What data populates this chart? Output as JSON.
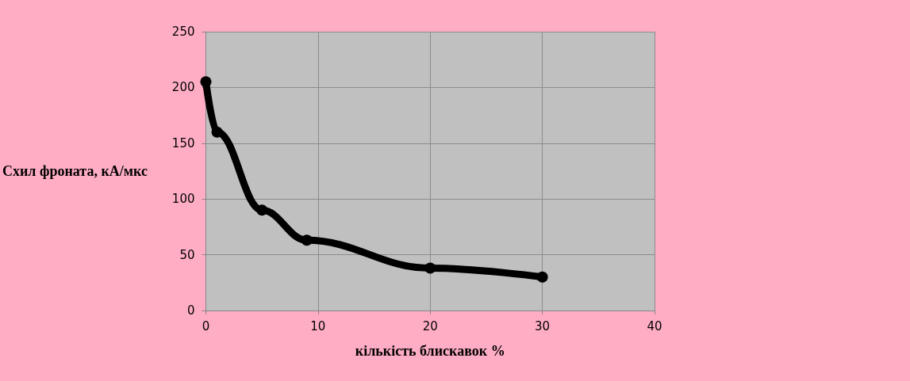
{
  "chart_data": {
    "type": "line",
    "xlabel": "кількість блискавок %",
    "ylabel": "Схил фроната, кА/мкс",
    "x": [
      0,
      1,
      5,
      9,
      20,
      30
    ],
    "series": [
      {
        "color": "#000000",
        "values": [
          205,
          160,
          90,
          63,
          38,
          30
        ]
      }
    ],
    "xlim": [
      0,
      40
    ],
    "xticks": [
      0,
      10,
      20,
      30,
      40
    ],
    "ylim": [
      0,
      250
    ],
    "yticks": [
      0,
      50,
      100,
      150,
      200,
      250
    ],
    "grid": true,
    "marker": "circle",
    "line_style": "solid"
  }
}
